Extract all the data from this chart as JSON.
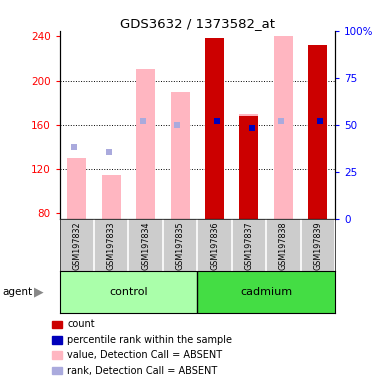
{
  "title": "GDS3632 / 1373582_at",
  "samples": [
    "GSM197832",
    "GSM197833",
    "GSM197834",
    "GSM197835",
    "GSM197836",
    "GSM197837",
    "GSM197838",
    "GSM197839"
  ],
  "ylim_left": [
    75,
    245
  ],
  "ylim_right": [
    0,
    100
  ],
  "yticks_left": [
    80,
    120,
    160,
    200,
    240
  ],
  "yticks_right": [
    0,
    25,
    50,
    75,
    100
  ],
  "bar_bottom": 75,
  "value_absent": [
    130,
    115,
    210,
    190,
    null,
    170,
    240,
    null
  ],
  "rank_absent_y": [
    140,
    135,
    163,
    160,
    null,
    null,
    163,
    null
  ],
  "count_present": [
    null,
    null,
    null,
    null,
    238,
    168,
    null,
    232
  ],
  "percentile_present": [
    null,
    null,
    null,
    null,
    163,
    157,
    null,
    163
  ],
  "absent_bar_color": "#FFB6C1",
  "present_bar_color": "#CC0000",
  "rank_absent_color": "#AAAADD",
  "percentile_color": "#0000BB",
  "control_color": "#AAFFAA",
  "cadmium_color": "#44DD44",
  "xlabel_area_color": "#CCCCCC",
  "legend": [
    {
      "color": "#CC0000",
      "label": "count"
    },
    {
      "color": "#0000BB",
      "label": "percentile rank within the sample"
    },
    {
      "color": "#FFB6C1",
      "label": "value, Detection Call = ABSENT"
    },
    {
      "color": "#AAAADD",
      "label": "rank, Detection Call = ABSENT"
    }
  ]
}
